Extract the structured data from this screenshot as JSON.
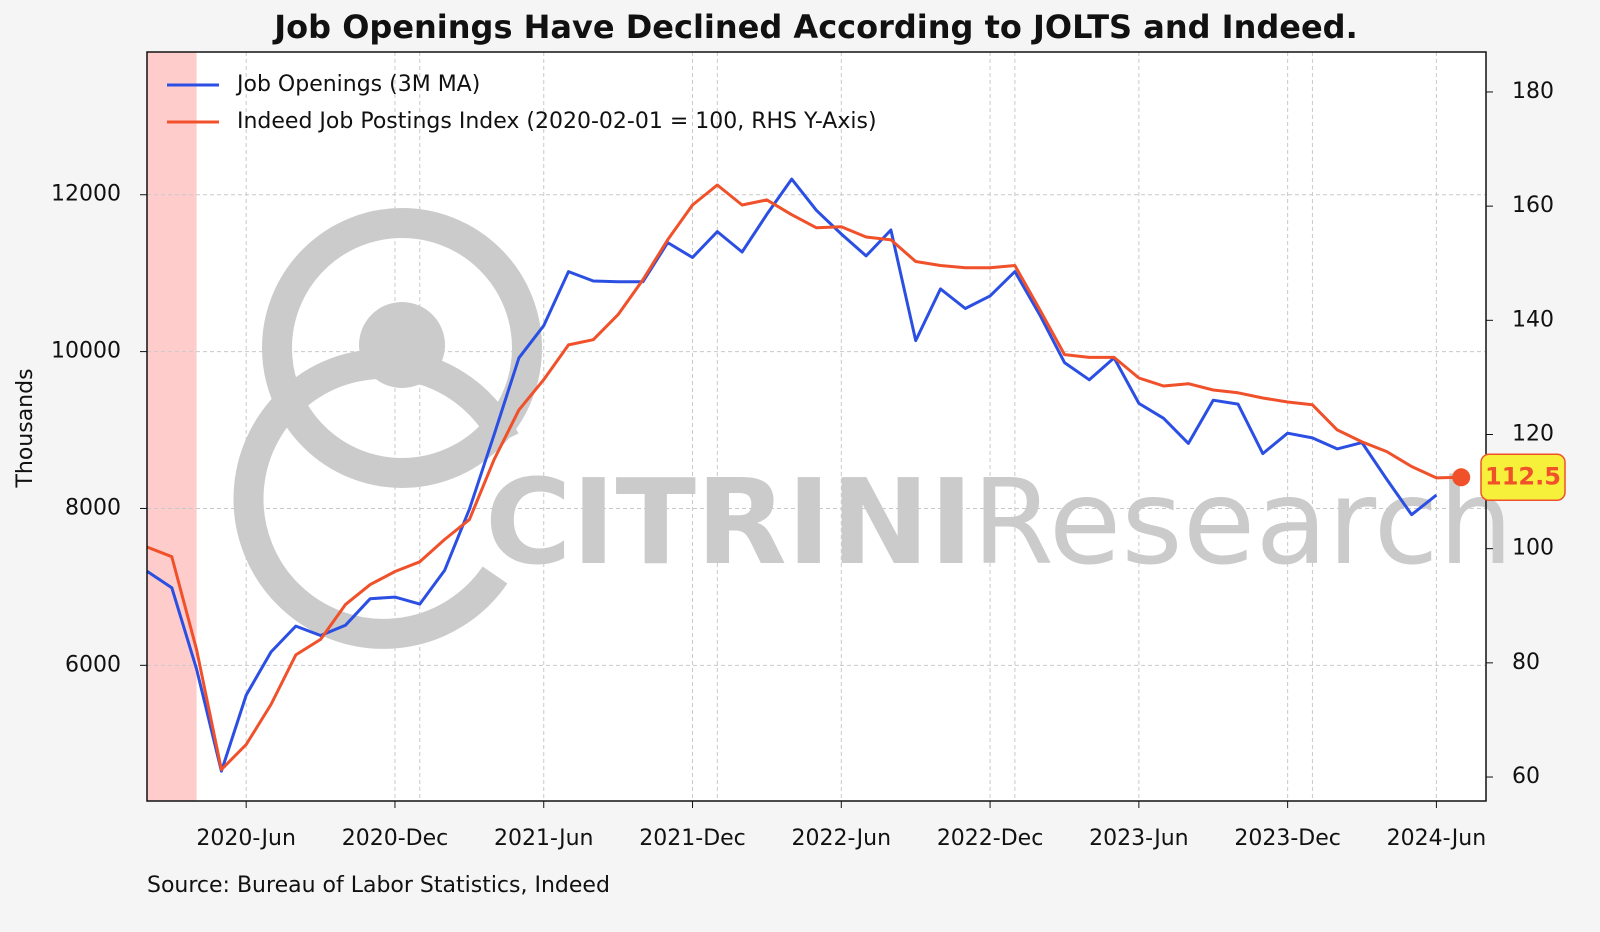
{
  "chart_data": {
    "type": "line",
    "title": "Job Openings Have Declined According to JOLTS and Indeed.",
    "ylabel": "Thousands",
    "source": "Source: Bureau of Labor Statistics, Indeed",
    "watermark": [
      "CITRINI",
      "Research"
    ],
    "legend": "upper left",
    "grid": true,
    "xlim": [
      "2020-02",
      "2024-08"
    ],
    "xticks": [
      {
        "value": "2020-06",
        "label": "2020-Jun"
      },
      {
        "value": "2020-12",
        "label": "2020-Dec"
      },
      {
        "value": "2021-06",
        "label": "2021-Jun"
      },
      {
        "value": "2021-12",
        "label": "2021-Dec"
      },
      {
        "value": "2022-06",
        "label": "2022-Jun"
      },
      {
        "value": "2022-12",
        "label": "2022-Dec"
      },
      {
        "value": "2023-06",
        "label": "2023-Jun"
      },
      {
        "value": "2023-12",
        "label": "2023-Dec"
      },
      {
        "value": "2024-06",
        "label": "2024-Jun"
      }
    ],
    "x_minor_grid": [
      "2021-01",
      "2022-01",
      "2023-01",
      "2024-01"
    ],
    "shaded": [
      {
        "start": "2020-02",
        "end": "2020-04",
        "color": "#ffcccc"
      }
    ],
    "ylim": [
      4270,
      13820
    ],
    "yticks": [
      6000,
      8000,
      10000,
      12000
    ],
    "y2lim": [
      55.8,
      187
    ],
    "y2ticks": [
      60,
      80,
      100,
      120,
      140,
      160,
      180
    ],
    "series": [
      {
        "name": "Job Openings (3M MA)",
        "color": "#2b4fe3",
        "axis": "y",
        "x": [
          "2020-02",
          "2020-03",
          "2020-04",
          "2020-05",
          "2020-06",
          "2020-07",
          "2020-08",
          "2020-09",
          "2020-10",
          "2020-11",
          "2020-12",
          "2021-01",
          "2021-02",
          "2021-03",
          "2021-04",
          "2021-05",
          "2021-06",
          "2021-07",
          "2021-08",
          "2021-09",
          "2021-10",
          "2021-11",
          "2021-12",
          "2022-01",
          "2022-02",
          "2022-03",
          "2022-04",
          "2022-05",
          "2022-06",
          "2022-07",
          "2022-08",
          "2022-09",
          "2022-10",
          "2022-11",
          "2022-12",
          "2023-01",
          "2023-02",
          "2023-03",
          "2023-04",
          "2023-05",
          "2023-06",
          "2023-07",
          "2023-08",
          "2023-09",
          "2023-10",
          "2023-11",
          "2023-12",
          "2024-01",
          "2024-02",
          "2024-03",
          "2024-04",
          "2024-05",
          "2024-06"
        ],
        "values": [
          7200,
          6990,
          5950,
          4650,
          5620,
          6170,
          6500,
          6380,
          6510,
          6850,
          6870,
          6780,
          7210,
          7990,
          8940,
          9920,
          10330,
          11020,
          10900,
          10890,
          10890,
          11390,
          11200,
          11530,
          11270,
          11750,
          12200,
          11800,
          11500,
          11220,
          11550,
          10140,
          10800,
          10550,
          10710,
          11020,
          10470,
          9860,
          9640,
          9920,
          9340,
          9150,
          8830,
          9380,
          9330,
          8700,
          8960,
          8900,
          8760,
          8840,
          8370,
          7920,
          8170
        ]
      },
      {
        "name": "Indeed Job Postings Index (2020-02-01 = 100, RHS Y-Axis)",
        "color": "#f0512a",
        "axis": "y2",
        "end_label": true,
        "x": [
          "2020-02",
          "2020-03",
          "2020-04",
          "2020-05",
          "2020-06",
          "2020-07",
          "2020-08",
          "2020-09",
          "2020-10",
          "2020-11",
          "2020-12",
          "2021-01",
          "2021-02",
          "2021-03",
          "2021-04",
          "2021-05",
          "2021-06",
          "2021-07",
          "2021-08",
          "2021-09",
          "2021-10",
          "2021-11",
          "2021-12",
          "2022-01",
          "2022-02",
          "2022-03",
          "2022-04",
          "2022-05",
          "2022-06",
          "2022-07",
          "2022-08",
          "2022-09",
          "2022-10",
          "2022-11",
          "2022-12",
          "2023-01",
          "2023-02",
          "2023-03",
          "2023-04",
          "2023-05",
          "2023-06",
          "2023-07",
          "2023-08",
          "2023-09",
          "2023-10",
          "2023-11",
          "2023-12",
          "2024-01",
          "2024-02",
          "2024-03",
          "2024-04",
          "2024-05",
          "2024-06",
          "2024-07"
        ],
        "values": [
          100.3,
          98.6,
          82.3,
          61.3,
          65.7,
          72.7,
          81.4,
          84.1,
          90.2,
          93.7,
          96.0,
          97.7,
          101.6,
          105.1,
          115.6,
          124.3,
          129.6,
          135.7,
          136.6,
          141.0,
          147.1,
          154.1,
          160.2,
          163.7,
          160.2,
          161.1,
          158.5,
          156.2,
          156.4,
          154.6,
          154.1,
          150.3,
          149.6,
          149.2,
          149.2,
          149.6,
          141.9,
          134.0,
          133.5,
          133.5,
          129.9,
          128.5,
          128.9,
          127.8,
          127.3,
          126.4,
          125.7,
          125.2,
          120.8,
          118.7,
          117.0,
          114.4,
          112.4,
          112.5
        ]
      }
    ]
  }
}
